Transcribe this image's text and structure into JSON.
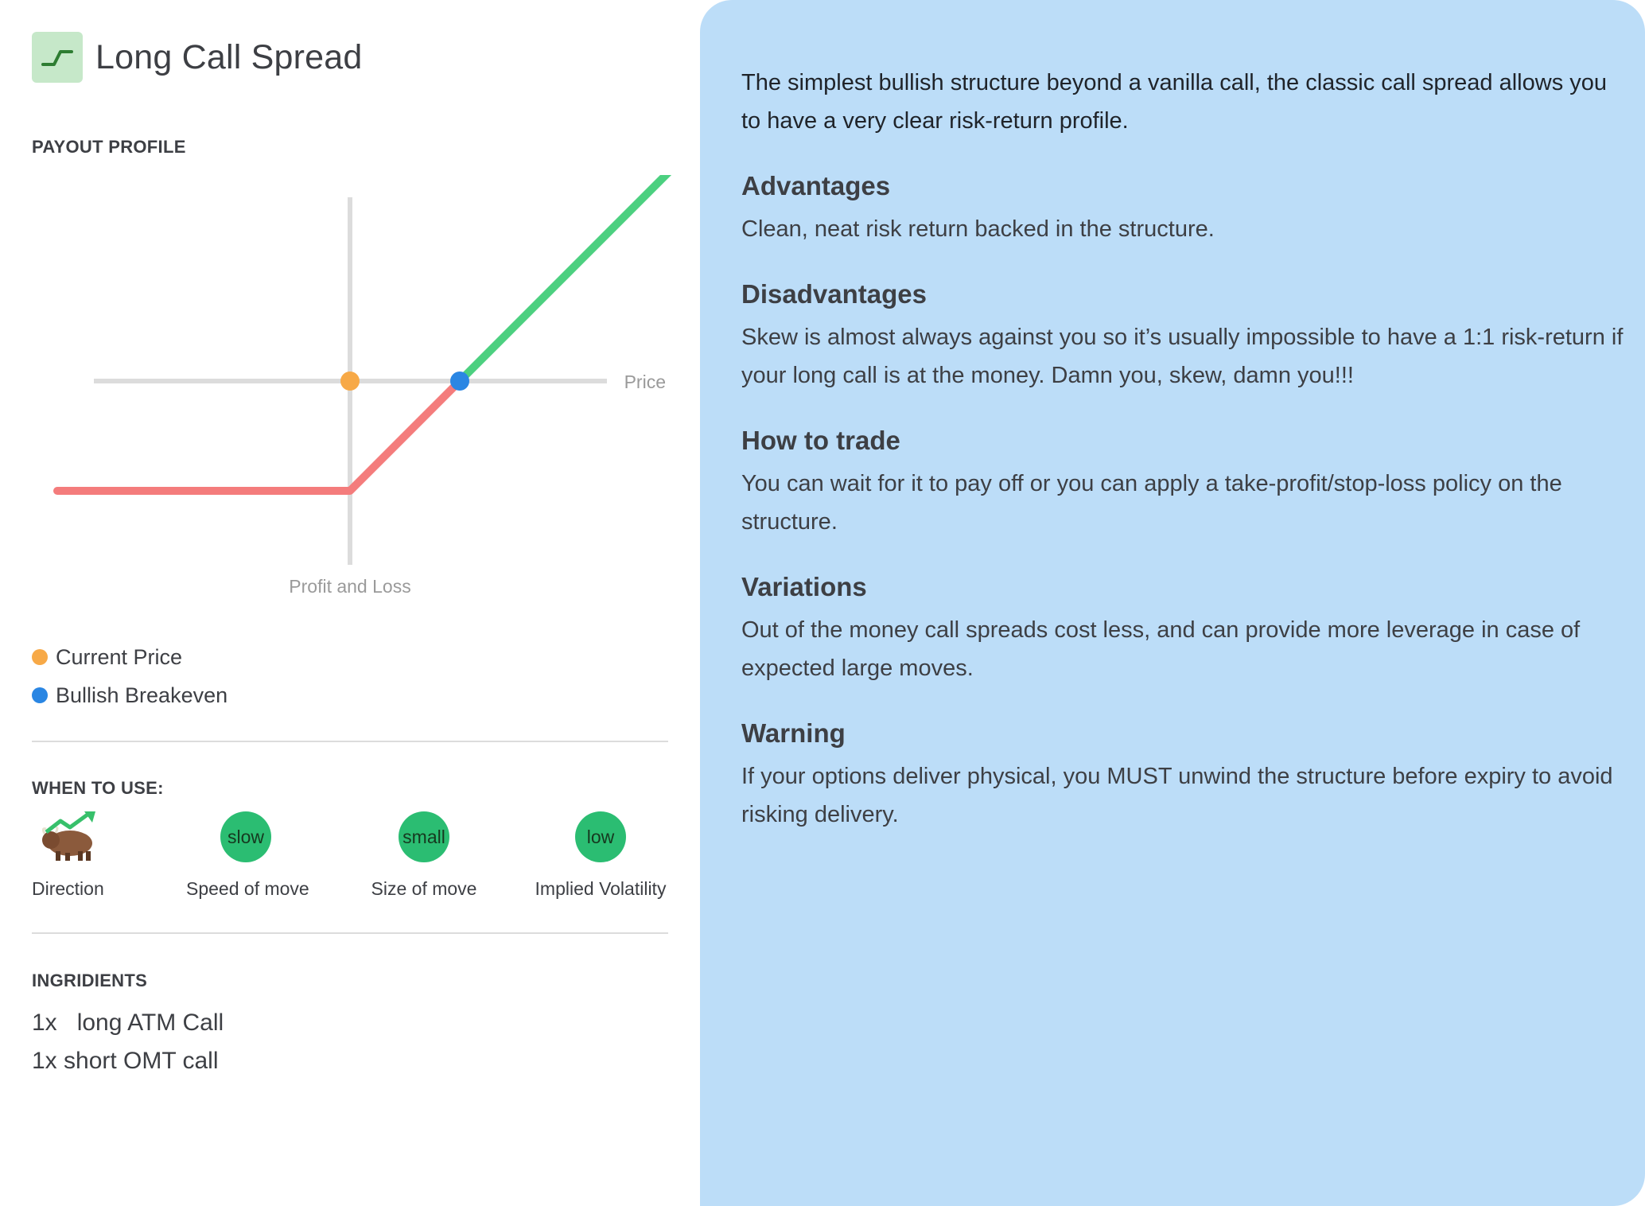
{
  "header": {
    "title": "Long Call Spread",
    "icon": "payoff-chart-icon"
  },
  "payout": {
    "section_label": "PAYOUT PROFILE",
    "chart_data": {
      "type": "line",
      "xlabel": "Price",
      "ylabel": "Profit and Loss",
      "series": [
        {
          "segment": "loss",
          "color": "#f47c7c",
          "x": [
            -4,
            0,
            1.5
          ],
          "y": [
            -1.5,
            -1.5,
            0
          ]
        },
        {
          "segment": "profit",
          "color": "#4cd080",
          "x": [
            1.5,
            4.5,
            6.3
          ],
          "y": [
            0,
            3,
            3
          ]
        }
      ],
      "points": [
        {
          "name": "Current Price",
          "x": 0,
          "y": 0,
          "color": "#f7a947"
        },
        {
          "name": "Bullish Breakeven",
          "x": 1.5,
          "y": 0,
          "color": "#2a86e3"
        }
      ]
    },
    "legend": [
      {
        "label": "Current Price",
        "color": "#f7a947"
      },
      {
        "label": "Bullish Breakeven",
        "color": "#2a86e3"
      }
    ]
  },
  "when_to_use": {
    "section_label": "WHEN TO USE:",
    "items": [
      {
        "value": "",
        "icon": "bull-icon",
        "caption": "Direction"
      },
      {
        "value": "slow",
        "caption": "Speed of move"
      },
      {
        "value": "small",
        "caption": "Size of move"
      },
      {
        "value": "low",
        "caption": "Implied Volatility"
      }
    ]
  },
  "ingredients": {
    "section_label": "INGRIDIENTS",
    "items": [
      "1x   long ATM Call",
      "1x short OMT call"
    ]
  },
  "description": {
    "intro": "The simplest bullish structure beyond a vanilla call, the classic call spread allows you to have a very clear risk-return profile.",
    "sections": [
      {
        "heading": "Advantages",
        "text": "Clean, neat risk return backed in the structure."
      },
      {
        "heading": "Disadvantages",
        "text": "Skew is almost always against you so it’s usually impossible to have a 1:1 risk-return if your long call is at the money. Damn you, skew, damn you!!!"
      },
      {
        "heading": "How to trade",
        "text": "You can wait for it to pay off or you can apply a take-profit/stop-loss policy on the structure."
      },
      {
        "heading": "Variations",
        "text": "Out of the money call spreads cost less, and can provide more leverage in case of expected large moves."
      },
      {
        "heading": "Warning",
        "text": "If your options deliver physical, you MUST unwind the structure before expiry to avoid risking delivery."
      }
    ]
  }
}
